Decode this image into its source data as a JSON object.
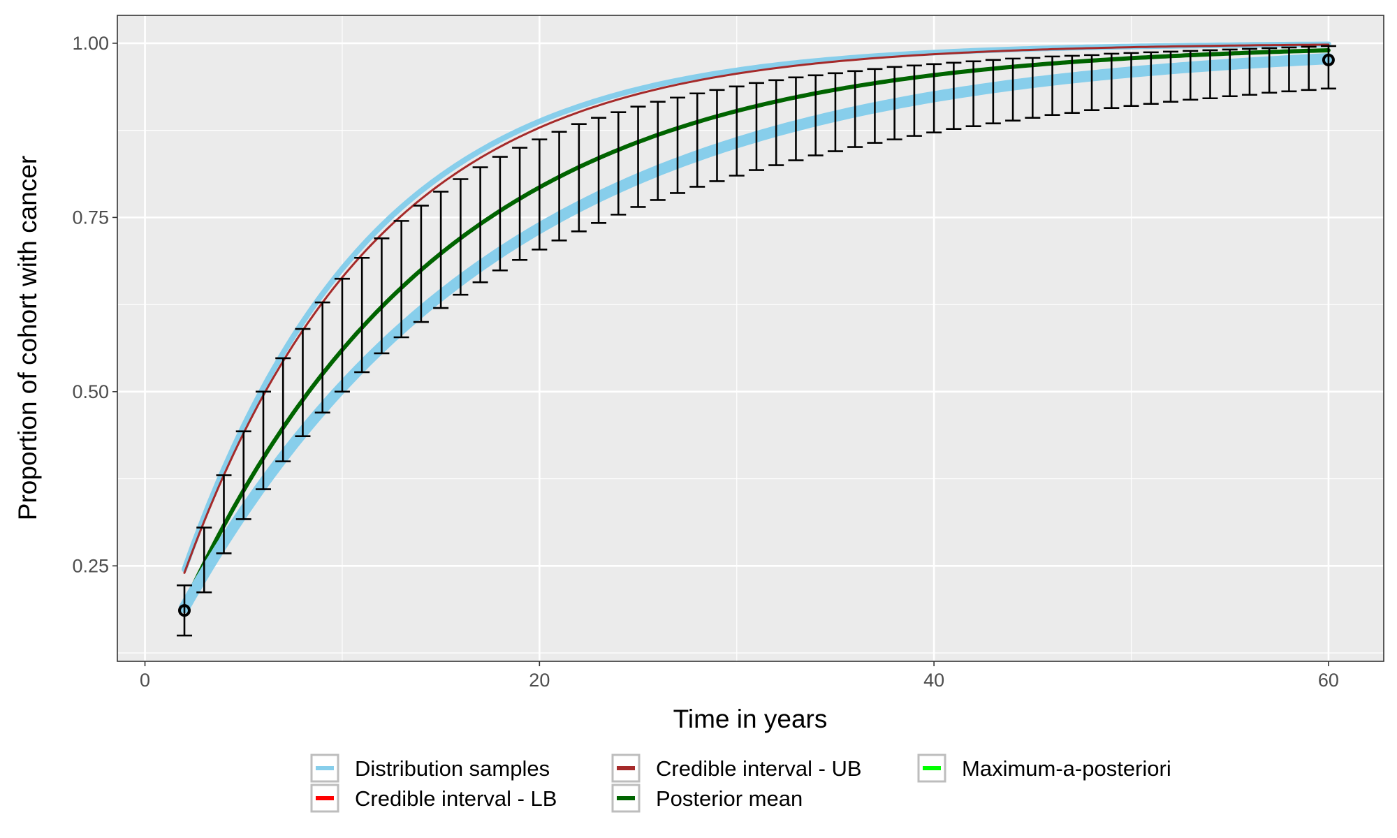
{
  "chart_data": {
    "type": "line",
    "title": "",
    "xlabel": "Time in years",
    "ylabel": "Proportion of cohort with cancer",
    "xlim": [
      -1.4,
      62.8
    ],
    "ylim": [
      0.113,
      1.04
    ],
    "x_ticks": [
      0,
      20,
      40,
      60
    ],
    "x_tick_labels": [
      "0",
      "20",
      "40",
      "60"
    ],
    "y_ticks": [
      0.25,
      0.5,
      0.75,
      1.0
    ],
    "y_tick_labels": [
      "0.25",
      "0.50",
      "0.75",
      "1.00"
    ],
    "grid": true,
    "legend_position": "bottom",
    "legend": [
      {
        "key": "samples",
        "label": "Distribution samples",
        "color": "#87CEEB"
      },
      {
        "key": "lb",
        "label": "Credible interval - LB",
        "color": "#FF0000"
      },
      {
        "key": "ub",
        "label": "Credible interval - UB",
        "color": "#A52A2A"
      },
      {
        "key": "mean",
        "label": "Posterior mean",
        "color": "#006400"
      },
      {
        "key": "map",
        "label": "Maximum-a-posteriori",
        "color": "#00FF00"
      }
    ],
    "curve_model": "1 - (1 - p0) * exp(-r * (t - 2))",
    "series": [
      {
        "key": "samples_upper",
        "p0": 0.245,
        "rate": 0.1059,
        "color": "#87CEEB",
        "width": 8
      },
      {
        "key": "ub",
        "p0": 0.24,
        "rate": 0.102,
        "color": "#A52A2A",
        "width": 3
      },
      {
        "key": "mean",
        "p0": 0.195,
        "rate": 0.0755,
        "color": "#006400",
        "width": 6
      },
      {
        "key": "lb",
        "p0": 0.19,
        "rate": 0.062,
        "color": "#87CEEB",
        "width": 16
      }
    ],
    "observations": {
      "x": [
        2,
        3,
        4,
        5,
        6,
        7,
        8,
        9,
        10,
        11,
        12,
        13,
        14,
        15,
        16,
        17,
        18,
        19,
        20,
        21,
        22,
        23,
        24,
        25,
        26,
        27,
        28,
        29,
        30,
        31,
        32,
        33,
        34,
        35,
        36,
        37,
        38,
        39,
        40,
        41,
        42,
        43,
        44,
        45,
        46,
        47,
        48,
        49,
        50,
        51,
        52,
        53,
        54,
        55,
        56,
        57,
        58,
        59,
        60
      ],
      "y": [
        0.186,
        0.262,
        0.331,
        0.394,
        0.45,
        0.5,
        0.545,
        0.586,
        0.623,
        0.656,
        0.686,
        0.712,
        0.736,
        0.757,
        0.777,
        0.794,
        0.81,
        0.824,
        0.837,
        0.849,
        0.859,
        0.869,
        0.877,
        0.885,
        0.892,
        0.898,
        0.904,
        0.909,
        0.914,
        0.918,
        0.922,
        0.926,
        0.929,
        0.932,
        0.935,
        0.938,
        0.94,
        0.942,
        0.945,
        0.946,
        0.948,
        0.95,
        0.951,
        0.953,
        0.954,
        0.955,
        0.957,
        0.958,
        0.959,
        0.96,
        0.96,
        0.961,
        0.962,
        0.963,
        0.963,
        0.964,
        0.965,
        0.965,
        0.976
      ],
      "lower": [
        0.15,
        0.212,
        0.268,
        0.317,
        0.36,
        0.4,
        0.436,
        0.47,
        0.5,
        0.528,
        0.555,
        0.578,
        0.6,
        0.62,
        0.639,
        0.657,
        0.674,
        0.689,
        0.704,
        0.717,
        0.73,
        0.742,
        0.754,
        0.765,
        0.775,
        0.785,
        0.794,
        0.802,
        0.81,
        0.818,
        0.825,
        0.832,
        0.839,
        0.845,
        0.851,
        0.857,
        0.862,
        0.867,
        0.872,
        0.877,
        0.881,
        0.885,
        0.889,
        0.893,
        0.897,
        0.9,
        0.904,
        0.907,
        0.91,
        0.913,
        0.916,
        0.919,
        0.921,
        0.924,
        0.926,
        0.929,
        0.931,
        0.933,
        0.935
      ],
      "upper": [
        0.222,
        0.305,
        0.38,
        0.443,
        0.5,
        0.548,
        0.59,
        0.628,
        0.662,
        0.692,
        0.72,
        0.745,
        0.767,
        0.787,
        0.805,
        0.822,
        0.837,
        0.85,
        0.862,
        0.873,
        0.884,
        0.893,
        0.901,
        0.909,
        0.916,
        0.922,
        0.928,
        0.933,
        0.938,
        0.943,
        0.947,
        0.951,
        0.954,
        0.957,
        0.96,
        0.963,
        0.966,
        0.968,
        0.97,
        0.972,
        0.974,
        0.976,
        0.978,
        0.979,
        0.981,
        0.982,
        0.983,
        0.985,
        0.986,
        0.987,
        0.988,
        0.989,
        0.99,
        0.991,
        0.992,
        0.993,
        0.994,
        0.995,
        0.996
      ]
    }
  }
}
